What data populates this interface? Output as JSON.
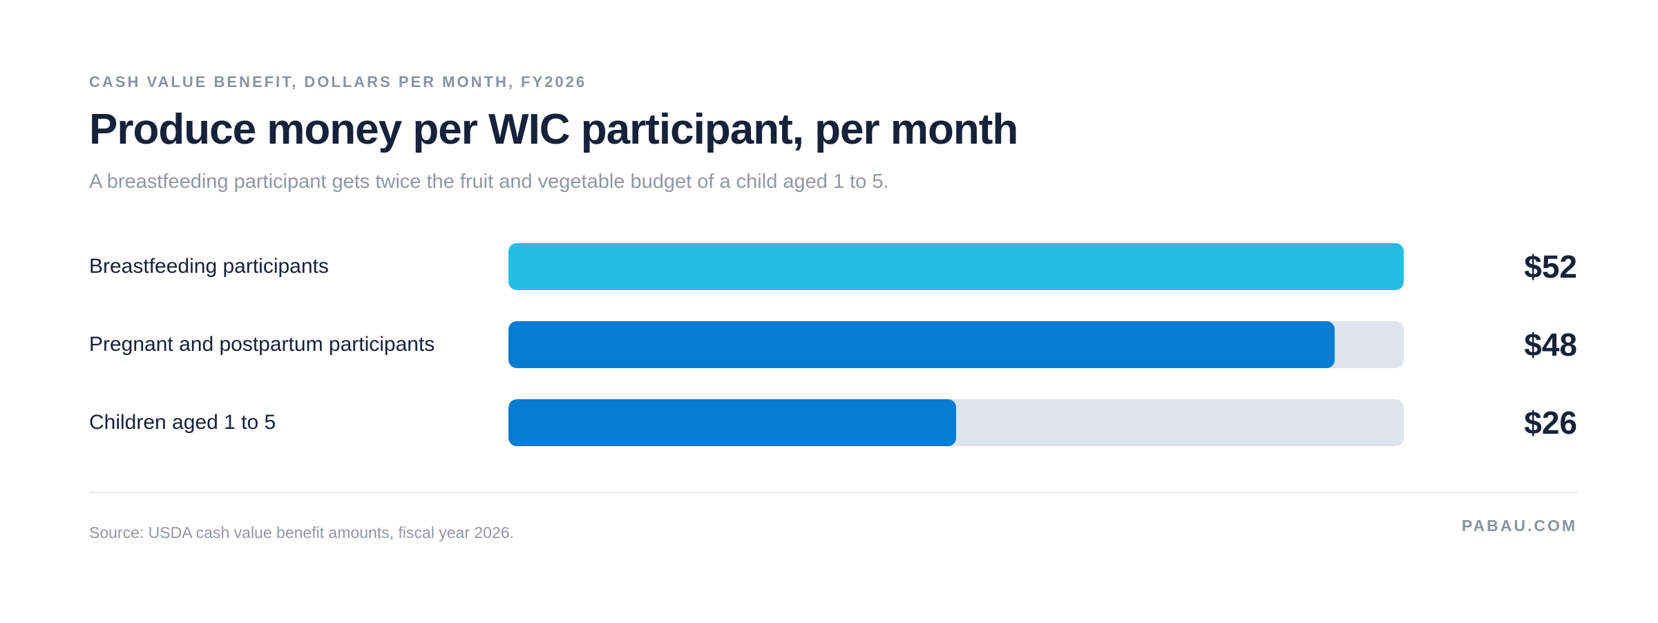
{
  "header": {
    "eyebrow": "CASH VALUE BENEFIT, DOLLARS PER MONTH, FY2026",
    "title": "Produce money per WIC participant, per month",
    "subtitle": "A breastfeeding participant gets twice the fruit and vegetable budget of a child aged 1 to 5."
  },
  "chart_data": {
    "type": "bar",
    "orientation": "horizontal",
    "title": "Produce money per WIC participant, per month",
    "subtitle": "A breastfeeding participant gets twice the fruit and vegetable budget of a child aged 1 to 5.",
    "xlabel": "",
    "ylabel": "",
    "unit": "dollars per month",
    "xlim": [
      0,
      52
    ],
    "grid": false,
    "categories": [
      "Breastfeeding participants",
      "Pregnant and postpartum participants",
      "Children aged 1 to 5"
    ],
    "values": [
      52,
      48,
      26
    ],
    "value_labels": [
      "$52",
      "$48",
      "$26"
    ],
    "colors": [
      "#25bde2",
      "#077cd3",
      "#077cd3"
    ],
    "track_color": "#dfe3ec"
  },
  "footer": {
    "source": "Source: USDA cash value benefit amounts, fiscal year 2026.",
    "brand": "PABAU.COM"
  }
}
